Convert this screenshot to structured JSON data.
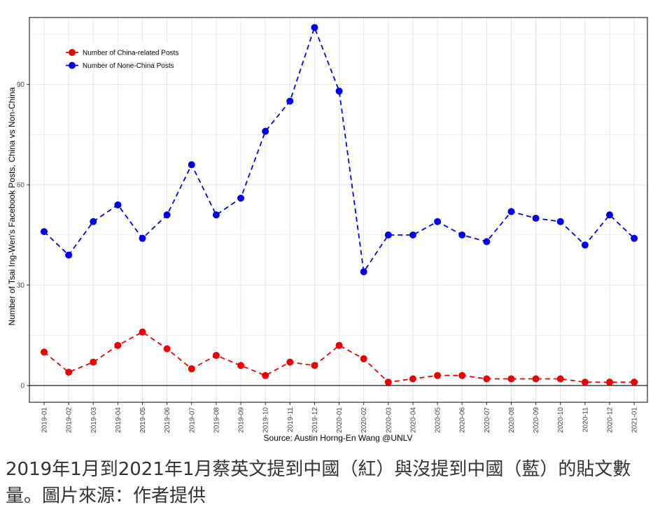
{
  "chart_data": {
    "type": "line",
    "ylabel": "Number of Tsai Ing-Wen's Facebook Posts, China vs Non-China",
    "xlabel": "Source: Austin Horng-En Wang @UNLV",
    "categories": [
      "2019-01",
      "2019-02",
      "2019-03",
      "2019-04",
      "2019-05",
      "2019-06",
      "2019-07",
      "2019-08",
      "2019-09",
      "2019-10",
      "2019-11",
      "2019-12",
      "2020-01",
      "2020-02",
      "2020-03",
      "2020-04",
      "2020-05",
      "2020-06",
      "2020-07",
      "2020-08",
      "2020-09",
      "2020-10",
      "2020-11",
      "2020-12",
      "2021-01"
    ],
    "y_ticks": [
      "0",
      "30",
      "60",
      "90"
    ],
    "ylim": [
      -5,
      110
    ],
    "grid": true,
    "legend_position": "top-left",
    "series": [
      {
        "name": "Number of China-related Posts",
        "color": "#ee0000",
        "values": [
          10,
          4,
          7,
          12,
          16,
          11,
          5,
          9,
          6,
          3,
          7,
          6,
          12,
          8,
          1,
          2,
          3,
          3,
          2,
          2,
          2,
          2,
          1,
          1,
          1
        ]
      },
      {
        "name": "Number of None-China Posts",
        "color": "#0000ee",
        "values": [
          46,
          39,
          49,
          54,
          44,
          51,
          66,
          51,
          56,
          76,
          85,
          107,
          88,
          34,
          45,
          45,
          49,
          45,
          43,
          52,
          50,
          49,
          42,
          51,
          44
        ]
      }
    ]
  },
  "caption": "2019年1月到2021年1月蔡英文提到中國（紅）與沒提到中國（藍）的貼文數量。圖片來源：作者提供"
}
